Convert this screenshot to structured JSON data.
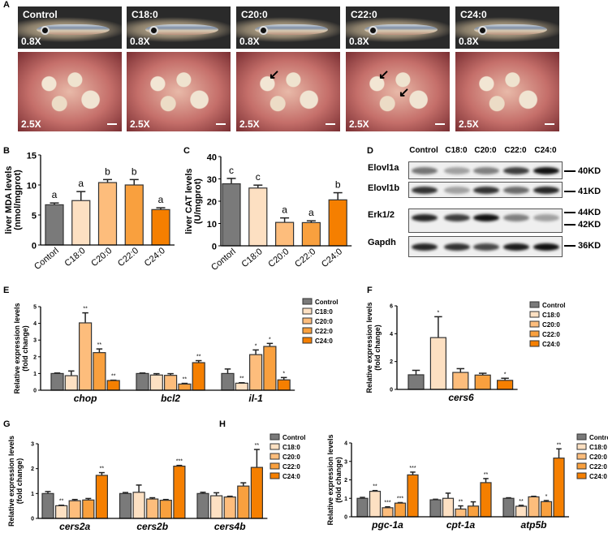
{
  "panel_labels": {
    "A": "A",
    "B": "B",
    "C": "C",
    "D": "D",
    "E": "E",
    "F": "F",
    "G": "G",
    "H": "H"
  },
  "panel_a": {
    "groups": [
      "Control",
      "C18:0",
      "C20:0",
      "C22:0",
      "C24:0"
    ],
    "top_magnification": "0.8X",
    "bottom_magnification": "2.5X",
    "arrows": {
      "C20:0": 1,
      "C22:0": 2
    }
  },
  "panel_d": {
    "lanes": [
      "Control",
      "C18:0",
      "C20:0",
      "C22:0",
      "C24:0"
    ],
    "rows": [
      {
        "name": "Elovl1a",
        "intensity": [
          0.55,
          0.35,
          0.5,
          0.8,
          1.0
        ]
      },
      {
        "name": "Elovl1b",
        "intensity": [
          0.85,
          0.35,
          0.85,
          0.6,
          0.9
        ]
      },
      {
        "name": "Erk1/2",
        "intensity": [
          0.9,
          0.8,
          1.0,
          0.5,
          0.35
        ]
      },
      {
        "name": "Gapdh",
        "intensity": [
          0.9,
          0.85,
          0.75,
          0.95,
          1.0
        ]
      }
    ],
    "markers": [
      "40KD",
      "41KD",
      "44KD",
      "42KD",
      "36KD"
    ]
  },
  "legend": [
    "Control",
    "C18:0",
    "C20:0",
    "C22:0",
    "C24:0"
  ],
  "colors": [
    "#7a7a7a",
    "#fde0c2",
    "#fdbd7c",
    "#f9a03e",
    "#f57f00"
  ],
  "chart_data": [
    {
      "id": "B",
      "type": "bar",
      "ylabel": [
        "liver MDA levels",
        "(nmol/mgprot)"
      ],
      "ylim": [
        0,
        15
      ],
      "yticks": [
        0,
        5,
        10,
        15
      ],
      "categories": [
        "Contorl",
        "C18:0",
        "C20:0",
        "C22:0",
        "C24:0"
      ],
      "groups": [
        {
          "label": "",
          "values": [
            6.7,
            7.4,
            10.4,
            10.0,
            5.9
          ],
          "errors": [
            0.3,
            1.5,
            0.5,
            0.9,
            0.3
          ],
          "annotations": [
            "a",
            "a",
            "b",
            "b",
            "a"
          ]
        }
      ]
    },
    {
      "id": "C",
      "type": "bar",
      "ylabel": [
        "liver CAT levels",
        "(U/mgprot)"
      ],
      "ylim": [
        0,
        40
      ],
      "yticks": [
        0,
        10,
        20,
        30,
        40
      ],
      "categories": [
        "Contorl",
        "C18:0",
        "C20:0",
        "C22:0",
        "C24:0"
      ],
      "groups": [
        {
          "label": "",
          "values": [
            27.8,
            25.9,
            10.5,
            10.4,
            20.6
          ],
          "errors": [
            2.4,
            1.3,
            2.0,
            0.8,
            3.2
          ],
          "annotations": [
            "c",
            "c",
            "a",
            "a",
            "b"
          ]
        }
      ]
    },
    {
      "id": "E",
      "type": "bar",
      "ylabel": [
        "Relative expression levels",
        "(fold change)"
      ],
      "ylim": [
        0,
        5
      ],
      "yticks": [
        0,
        1,
        2,
        3,
        4,
        5
      ],
      "series": [
        "Control",
        "C18:0",
        "C20:0",
        "C22:0",
        "C24:0"
      ],
      "groups": [
        {
          "label": "chop",
          "values": [
            1.0,
            0.87,
            4.03,
            2.25,
            0.58
          ],
          "errors": [
            0.03,
            0.28,
            0.6,
            0.22,
            0.02
          ],
          "annotations": [
            "",
            "",
            "**",
            "**",
            "**"
          ]
        },
        {
          "label": "bcl2",
          "values": [
            1.0,
            0.91,
            0.89,
            0.37,
            1.65
          ],
          "errors": [
            0.03,
            0.08,
            0.1,
            0.04,
            0.12
          ],
          "annotations": [
            "",
            "",
            "",
            "**",
            "**"
          ]
        },
        {
          "label": "il-1",
          "values": [
            1.0,
            0.42,
            2.13,
            2.62,
            0.62
          ],
          "errors": [
            0.27,
            0.03,
            0.28,
            0.18,
            0.14
          ],
          "annotations": [
            "",
            "**",
            "*",
            "*",
            "*"
          ]
        }
      ]
    },
    {
      "id": "F",
      "type": "bar",
      "ylabel": [
        "Relative expression levels",
        "(fold change)"
      ],
      "ylim": [
        0,
        6
      ],
      "yticks": [
        0,
        2,
        4,
        6
      ],
      "series": [
        "Control",
        "C18:0",
        "C20:0",
        "C22:0",
        "C24:0"
      ],
      "groups": [
        {
          "label": "cers6",
          "values": [
            1.05,
            3.72,
            1.22,
            1.03,
            0.65
          ],
          "errors": [
            0.32,
            1.5,
            0.27,
            0.13,
            0.15
          ],
          "annotations": [
            "",
            "*",
            "",
            "",
            "*"
          ]
        }
      ]
    },
    {
      "id": "G",
      "type": "bar",
      "ylabel": [
        "Relative expression levels",
        "(fold change)"
      ],
      "ylim": [
        0,
        3
      ],
      "yticks": [
        0,
        1,
        2,
        3
      ],
      "series": [
        "Control",
        "C18:0",
        "C20:0",
        "C22:0",
        "C24:0"
      ],
      "groups": [
        {
          "label": "cers2a",
          "values": [
            1.0,
            0.51,
            0.71,
            0.74,
            1.73
          ],
          "errors": [
            0.08,
            0.02,
            0.05,
            0.06,
            0.11
          ],
          "annotations": [
            "",
            "**",
            "",
            "",
            "**"
          ]
        },
        {
          "label": "cers2b",
          "values": [
            1.0,
            1.05,
            0.78,
            0.73,
            2.1
          ],
          "errors": [
            0.04,
            0.29,
            0.05,
            0.03,
            0.03
          ],
          "annotations": [
            "",
            "",
            "",
            "",
            "***"
          ]
        },
        {
          "label": "cers4b",
          "values": [
            1.0,
            0.91,
            0.86,
            1.3,
            2.05
          ],
          "errors": [
            0.05,
            0.12,
            0.03,
            0.13,
            0.72
          ],
          "annotations": [
            "",
            "",
            "",
            "",
            "**"
          ]
        }
      ]
    },
    {
      "id": "H",
      "type": "bar",
      "ylabel": [
        "Relative expression levels",
        "(fold change)"
      ],
      "ylim": [
        0,
        4
      ],
      "yticks": [
        0,
        1,
        2,
        3,
        4
      ],
      "series": [
        "Control",
        "C18:0",
        "C20:0",
        "C22:0",
        "C24:0"
      ],
      "groups": [
        {
          "label": "pgc-1a",
          "values": [
            1.0,
            1.38,
            0.49,
            0.74,
            2.27
          ],
          "errors": [
            0.05,
            0.04,
            0.05,
            0.03,
            0.15
          ],
          "annotations": [
            "",
            "**",
            "***",
            "***",
            "***"
          ]
        },
        {
          "label": "cpt-1a",
          "values": [
            0.92,
            1.0,
            0.42,
            0.58,
            1.85
          ],
          "errors": [
            0.03,
            0.28,
            0.17,
            0.23,
            0.22
          ],
          "annotations": [
            "",
            "",
            "**",
            "",
            "**"
          ]
        },
        {
          "label": "atp5b",
          "values": [
            1.0,
            0.57,
            1.08,
            0.82,
            3.18
          ],
          "errors": [
            0.03,
            0.05,
            0.03,
            0.06,
            0.5
          ],
          "annotations": [
            "",
            "**",
            "",
            "*",
            "**"
          ]
        }
      ]
    }
  ]
}
